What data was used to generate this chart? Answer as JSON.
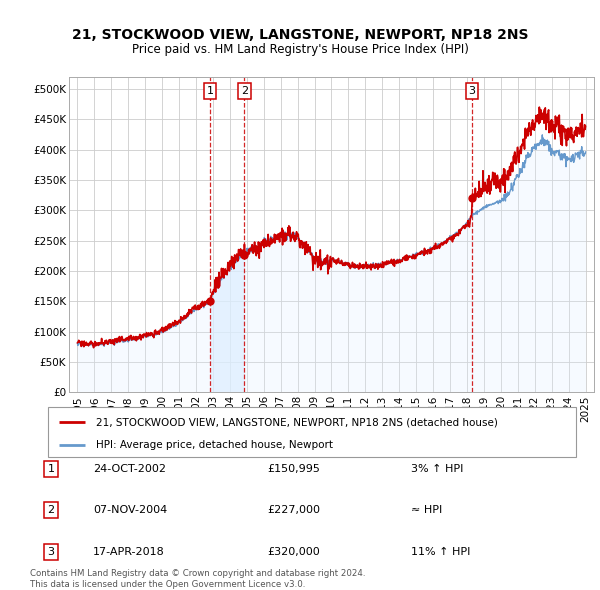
{
  "title": "21, STOCKWOOD VIEW, LANGSTONE, NEWPORT, NP18 2NS",
  "subtitle": "Price paid vs. HM Land Registry's House Price Index (HPI)",
  "legend_label_red": "21, STOCKWOOD VIEW, LANGSTONE, NEWPORT, NP18 2NS (detached house)",
  "legend_label_blue": "HPI: Average price, detached house, Newport",
  "purchases": [
    {
      "label": "1",
      "date": "24-OCT-2002",
      "price": 150995,
      "hpi_rel": "3% ↑ HPI",
      "x": 2002.82
    },
    {
      "label": "2",
      "date": "07-NOV-2004",
      "price": 227000,
      "hpi_rel": "≈ HPI",
      "x": 2004.86
    },
    {
      "label": "3",
      "date": "17-APR-2018",
      "price": 320000,
      "hpi_rel": "11% ↑ HPI",
      "x": 2018.29
    }
  ],
  "footer1": "Contains HM Land Registry data © Crown copyright and database right 2024.",
  "footer2": "This data is licensed under the Open Government Licence v3.0.",
  "background_color": "#ffffff",
  "plot_bg_color": "#ffffff",
  "grid_color": "#cccccc",
  "red_color": "#cc0000",
  "blue_color": "#6699cc",
  "blue_fill": "#ddeeff",
  "xmin": 1994.5,
  "xmax": 2025.5,
  "ymin": 0,
  "ymax": 520000,
  "hpi_ctrl": [
    [
      1995.0,
      80000
    ],
    [
      1996.0,
      78000
    ],
    [
      1997.0,
      82000
    ],
    [
      1998.0,
      86000
    ],
    [
      1999.0,
      92000
    ],
    [
      2000.0,
      100000
    ],
    [
      2001.0,
      115000
    ],
    [
      2002.0,
      138000
    ],
    [
      2002.82,
      148000
    ],
    [
      2003.0,
      165000
    ],
    [
      2004.0,
      208000
    ],
    [
      2004.86,
      227000
    ],
    [
      2005.0,
      232000
    ],
    [
      2006.0,
      245000
    ],
    [
      2007.0,
      258000
    ],
    [
      2007.5,
      262000
    ],
    [
      2008.0,
      255000
    ],
    [
      2008.5,
      238000
    ],
    [
      2009.0,
      220000
    ],
    [
      2009.5,
      215000
    ],
    [
      2010.0,
      218000
    ],
    [
      2010.5,
      215000
    ],
    [
      2011.0,
      210000
    ],
    [
      2011.5,
      208000
    ],
    [
      2012.0,
      210000
    ],
    [
      2012.5,
      208000
    ],
    [
      2013.0,
      212000
    ],
    [
      2013.5,
      215000
    ],
    [
      2014.0,
      218000
    ],
    [
      2014.5,
      222000
    ],
    [
      2015.0,
      228000
    ],
    [
      2015.5,
      232000
    ],
    [
      2016.0,
      238000
    ],
    [
      2016.5,
      245000
    ],
    [
      2017.0,
      255000
    ],
    [
      2017.5,
      265000
    ],
    [
      2018.0,
      278000
    ],
    [
      2018.29,
      290000
    ],
    [
      2018.5,
      295000
    ],
    [
      2019.0,
      305000
    ],
    [
      2019.5,
      310000
    ],
    [
      2020.0,
      315000
    ],
    [
      2020.5,
      330000
    ],
    [
      2021.0,
      355000
    ],
    [
      2021.5,
      385000
    ],
    [
      2022.0,
      405000
    ],
    [
      2022.5,
      415000
    ],
    [
      2023.0,
      400000
    ],
    [
      2023.5,
      390000
    ],
    [
      2024.0,
      385000
    ],
    [
      2024.5,
      390000
    ],
    [
      2025.0,
      395000
    ]
  ]
}
